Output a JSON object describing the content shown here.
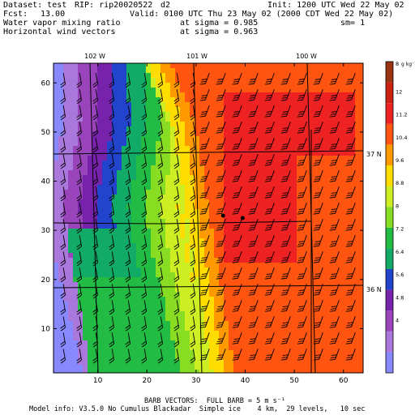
{
  "header": {
    "dataset": "Dataset: test",
    "rip": "RIP: rip20020522",
    "domain": "d2",
    "init": "Init: 1200 UTC Wed 22 May 02",
    "fcst_label": "Fcst:",
    "fcst_value": "13.00",
    "valid": "Valid: 0100 UTC Thu 23 May 02 (2000 CDT Wed 22 May 02)",
    "field1": "Water vapor mixing ratio",
    "field1_level": "at sigma = 0.985",
    "field1_smooth": "sm= 1",
    "field2": "Horizontal wind vectors",
    "field2_level": "at sigma = 0.963"
  },
  "map": {
    "lon_labels": [
      "102 W",
      "101 W",
      "100 W"
    ],
    "lat_labels": [
      "37 N",
      "36 N"
    ],
    "x_ticks": [
      "10",
      "20",
      "30",
      "40",
      "50",
      "60"
    ],
    "y_ticks": [
      "10",
      "20",
      "30",
      "40",
      "50",
      "60"
    ],
    "x_range": [
      1,
      64
    ],
    "y_range": [
      1,
      64
    ],
    "stations": [
      {
        "x": 35.5,
        "y": 33
      },
      {
        "x": 39.5,
        "y": 32.5
      }
    ]
  },
  "colorbar": {
    "unit": "g kg⁻¹",
    "labels": [
      "4",
      "4.8",
      "5.6",
      "6.4",
      "7.2",
      "8",
      "8.8",
      "9.6",
      "10.4",
      "11.2",
      "12"
    ],
    "top_label": "8",
    "colors": [
      "#8888ff",
      "#aa77dd",
      "#9944bb",
      "#7722aa",
      "#2244cc",
      "#11aa66",
      "#22bb44",
      "#88dd22",
      "#ccee22",
      "#ffdd00",
      "#ff9900",
      "#ff5511",
      "#ee2222",
      "#cc2211",
      "#993311"
    ]
  },
  "footer": {
    "barb": "BARB VECTORS:  FULL BARB = 5 m s⁻¹",
    "model": "Model info: V3.5.0 No Cumulus Blackadar  Simple ice    4 km,  29 levels,   10 sec"
  }
}
